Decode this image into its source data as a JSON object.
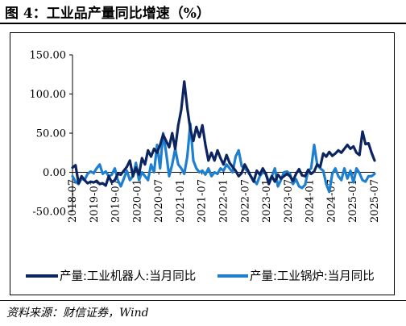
{
  "title": "图 4：工业品产量同比增速（%）",
  "source": "资料来源：财信证券，Wind",
  "colors": {
    "series1": "#0c2460",
    "series2": "#1f7fcf",
    "axis": "#000000",
    "grid": "#d0d0d0"
  },
  "chart_data": {
    "type": "line",
    "title": "",
    "xlabel": "",
    "ylabel": "",
    "ylim": [
      -50,
      150
    ],
    "yticks": [
      "150.00",
      "100.00",
      "50.00",
      "0.00",
      "-50.00"
    ],
    "ytick_values": [
      150,
      100,
      50,
      0,
      -50
    ],
    "xticks": [
      "2018-07",
      "2019-01",
      "2019-07",
      "2020-01",
      "2020-07",
      "2021-01",
      "2021-07",
      "2022-01",
      "2022-07",
      "2023-01",
      "2023-07",
      "2024-01",
      "2024-07",
      "2025-01",
      "2025-07"
    ],
    "x_start": "2018-07",
    "x_end": "2025-07",
    "legend_position": "bottom",
    "series": [
      {
        "name": "产量:工业机器人:当月同比",
        "color": "#0c2460",
        "values": [
          6,
          9,
          -14,
          -5,
          -10,
          -14,
          -12,
          -13,
          -11,
          -15,
          -14,
          -17,
          -5,
          -13,
          -10,
          -2,
          -3,
          2,
          7,
          15,
          -5,
          6,
          -3,
          18,
          10,
          28,
          20,
          30,
          25,
          35,
          48,
          40,
          32,
          50,
          30,
          60,
          80,
          116,
          82,
          55,
          40,
          58,
          45,
          60,
          35,
          15,
          25,
          15,
          28,
          18,
          10,
          22,
          12,
          7,
          2,
          -5,
          -1,
          10,
          3,
          -5,
          -12,
          2,
          -3,
          5,
          -2,
          -15,
          -5,
          -12,
          -3,
          -8,
          -5,
          -2,
          -5,
          -11,
          -2,
          4,
          -4,
          -5,
          3,
          -2,
          1,
          10,
          7,
          24,
          20,
          26,
          21,
          24,
          28,
          25,
          30,
          35,
          30,
          33,
          25,
          22,
          52,
          36,
          37,
          25,
          15
        ]
      },
      {
        "name": "产量:工业锅炉:当月同比",
        "color": "#1f7fcf",
        "values": [
          -5,
          -12,
          -15,
          -8,
          -10,
          -2,
          1,
          -1,
          5,
          10,
          -2,
          1,
          -5,
          -3,
          5,
          -10,
          -18,
          -8,
          2,
          -10,
          -5,
          12,
          -10,
          0,
          -5,
          -10,
          10,
          0,
          35,
          5,
          50,
          25,
          -5,
          10,
          30,
          10,
          5,
          -2,
          20,
          62,
          15,
          5,
          0,
          2,
          -3,
          5,
          -5,
          0,
          -2,
          5,
          2,
          10,
          5,
          0,
          20,
          28,
          8,
          5,
          1,
          -5,
          -10,
          -15,
          -5,
          0,
          -2,
          -12,
          -5,
          5,
          -18,
          -10,
          0,
          1,
          -2,
          -15,
          -9,
          -18,
          -20,
          -16,
          2,
          5,
          35,
          10,
          5,
          2,
          -15,
          -25,
          -2,
          5,
          -5,
          -10,
          5,
          -8,
          2,
          -13,
          5,
          -1,
          -10,
          -12,
          -5,
          -5,
          -2
        ]
      }
    ]
  }
}
